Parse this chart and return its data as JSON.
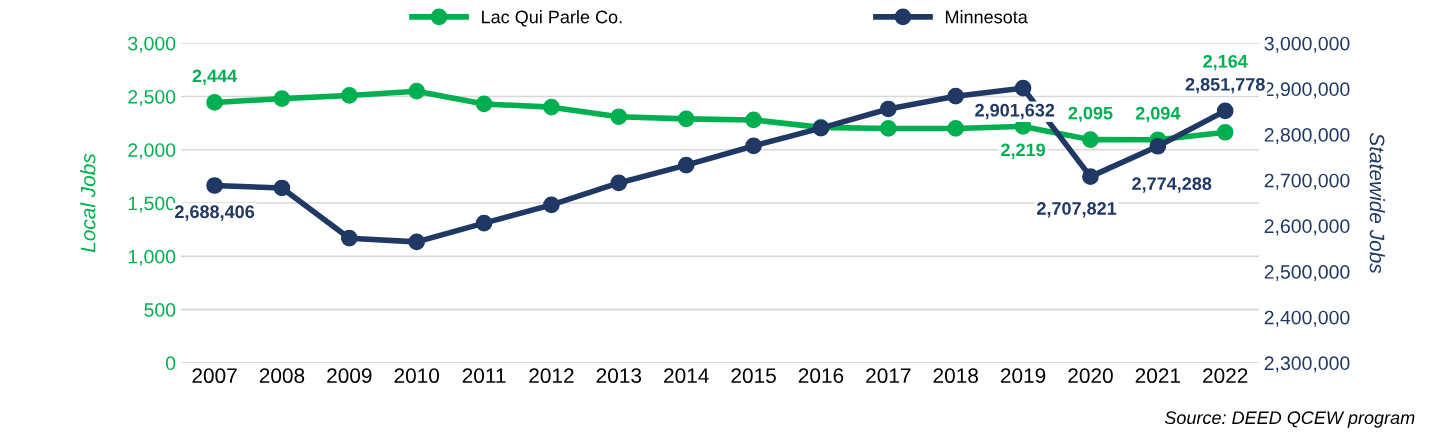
{
  "chart_data": {
    "type": "line",
    "categories": [
      "2007",
      "2008",
      "2009",
      "2010",
      "2011",
      "2012",
      "2013",
      "2014",
      "2015",
      "2016",
      "2017",
      "2018",
      "2019",
      "2020",
      "2021",
      "2022"
    ],
    "ylabel": "Local Jobs",
    "y2label": "Statewide Jobs",
    "ylim": [
      0,
      3000
    ],
    "yticks": [
      {
        "value": 0,
        "label": "0"
      },
      {
        "value": 500,
        "label": "500"
      },
      {
        "value": 1000,
        "label": "1,000"
      },
      {
        "value": 1500,
        "label": "1,500"
      },
      {
        "value": 2000,
        "label": "2,000"
      },
      {
        "value": 2500,
        "label": "2,500"
      },
      {
        "value": 3000,
        "label": "3,000"
      }
    ],
    "y2lim": [
      2300000,
      3000000
    ],
    "y2ticks": [
      {
        "value": 2300000,
        "label": "2,300,000"
      },
      {
        "value": 2400000,
        "label": "2,400,000"
      },
      {
        "value": 2500000,
        "label": "2,500,000"
      },
      {
        "value": 2600000,
        "label": "2,600,000"
      },
      {
        "value": 2700000,
        "label": "2,700,000"
      },
      {
        "value": 2800000,
        "label": "2,800,000"
      },
      {
        "value": 2900000,
        "label": "2,900,000"
      },
      {
        "value": 3000000,
        "label": "3,000,000"
      }
    ],
    "series": [
      {
        "name": "Lac Qui Parle Co.",
        "color": "#00b050",
        "values": [
          2444,
          2480,
          2510,
          2550,
          2430,
          2400,
          2310,
          2290,
          2280,
          2210,
          2200,
          2200,
          2219,
          2095,
          2094,
          2164
        ],
        "value_labels": [
          "2,444",
          null,
          null,
          null,
          null,
          null,
          null,
          null,
          null,
          null,
          null,
          null,
          "2,219",
          "2,095",
          "2,094",
          "2,164"
        ]
      },
      {
        "name": "Minnesota",
        "color": "#1f3864",
        "axis": "y2",
        "values": [
          2688406,
          2683000,
          2573000,
          2565000,
          2606000,
          2646000,
          2694000,
          2733000,
          2775000,
          2814000,
          2856000,
          2884000,
          2901632,
          2707821,
          2774288,
          2851778
        ],
        "value_labels": [
          "2,688,406",
          null,
          null,
          null,
          null,
          null,
          null,
          null,
          null,
          null,
          null,
          null,
          "2,901,632",
          "2,707,821",
          "2,774,288",
          "2,851,778"
        ]
      }
    ],
    "marker": "circle",
    "grid": "y",
    "legend": "top",
    "annotations": [
      "Source: DEED QCEW program"
    ]
  }
}
